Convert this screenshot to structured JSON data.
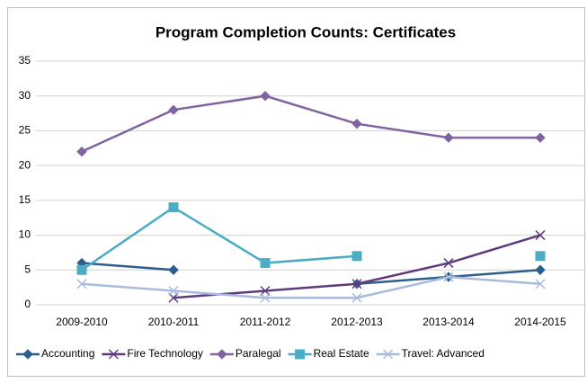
{
  "chart_data": {
    "type": "line",
    "title": "Program Completion Counts:  Certificates",
    "categories": [
      "2009-2010",
      "2010-2011",
      "2011-2012",
      "2012-2013",
      "2013-2014",
      "2014-2015"
    ],
    "series": [
      {
        "name": "Accounting",
        "color": "#2f5d8c",
        "marker": "diamond",
        "values": [
          6,
          5,
          null,
          3,
          4,
          5
        ]
      },
      {
        "name": "Fire Technology",
        "color": "#5e3b7d",
        "marker": "x",
        "values": [
          null,
          1,
          2,
          3,
          6,
          10
        ]
      },
      {
        "name": "Paralegal",
        "color": "#8064a2",
        "marker": "diamond",
        "values": [
          22,
          28,
          30,
          26,
          24,
          24
        ]
      },
      {
        "name": "Real Estate",
        "color": "#4bacc6",
        "marker": "square",
        "values": [
          5,
          14,
          6,
          7,
          null,
          7
        ]
      },
      {
        "name": "Travel: Advanced",
        "color": "#a9bbdc",
        "marker": "x",
        "values": [
          3,
          2,
          1,
          1,
          4,
          3
        ]
      }
    ],
    "ylim": [
      0,
      35
    ],
    "yticks": [
      0,
      5,
      10,
      15,
      20,
      25,
      30,
      35
    ],
    "grid": true,
    "legend": "bottom"
  }
}
